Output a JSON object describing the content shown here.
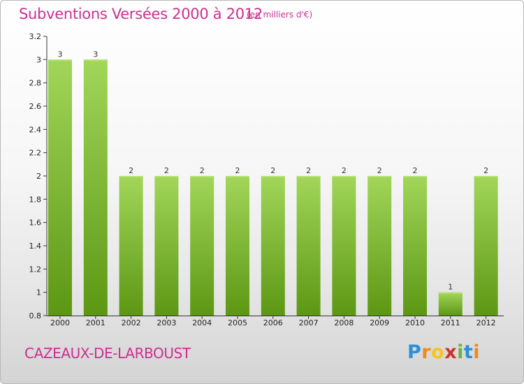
{
  "header": {
    "title": "Subventions Versées 2000 à 2012",
    "unit_note": "(en milliers d'€)"
  },
  "footer": {
    "commune": "CAZEAUX-DE-LARBOUST",
    "logo_letters": [
      "P",
      "r",
      "o",
      "x",
      "i",
      "t",
      "i"
    ]
  },
  "colors": {
    "title": "#cc2f91",
    "bar_light": "#9bd14e",
    "bar_dark": "#5e9a14",
    "axis": "#333333"
  },
  "chart_data": {
    "type": "bar",
    "title": "Subventions Versées 2000 à 2012",
    "subtitle": "(en milliers d'€)",
    "xlabel": "",
    "ylabel": "",
    "categories": [
      "2000",
      "2001",
      "2002",
      "2003",
      "2004",
      "2005",
      "2006",
      "2007",
      "2008",
      "2009",
      "2010",
      "2011",
      "2012"
    ],
    "values": [
      3,
      3,
      2,
      2,
      2,
      2,
      2,
      2,
      2,
      2,
      2,
      1,
      2
    ],
    "data_labels": [
      "3",
      "3",
      "2",
      "2",
      "2",
      "2",
      "2",
      "2",
      "2",
      "2",
      "2",
      "1",
      "2"
    ],
    "ylim": [
      0.8,
      3.2
    ],
    "yticks": [
      0.8,
      1,
      1.2,
      1.4,
      1.6,
      1.8,
      2,
      2.2,
      2.4,
      2.6,
      2.8,
      3,
      3.2
    ],
    "ytick_labels": [
      "0.8",
      "1",
      "1.2",
      "1.4",
      "1.6",
      "1.8",
      "2",
      "2.2",
      "2.4",
      "2.6",
      "2.8",
      "3",
      "3.2"
    ],
    "grid": false,
    "legend": "none"
  }
}
